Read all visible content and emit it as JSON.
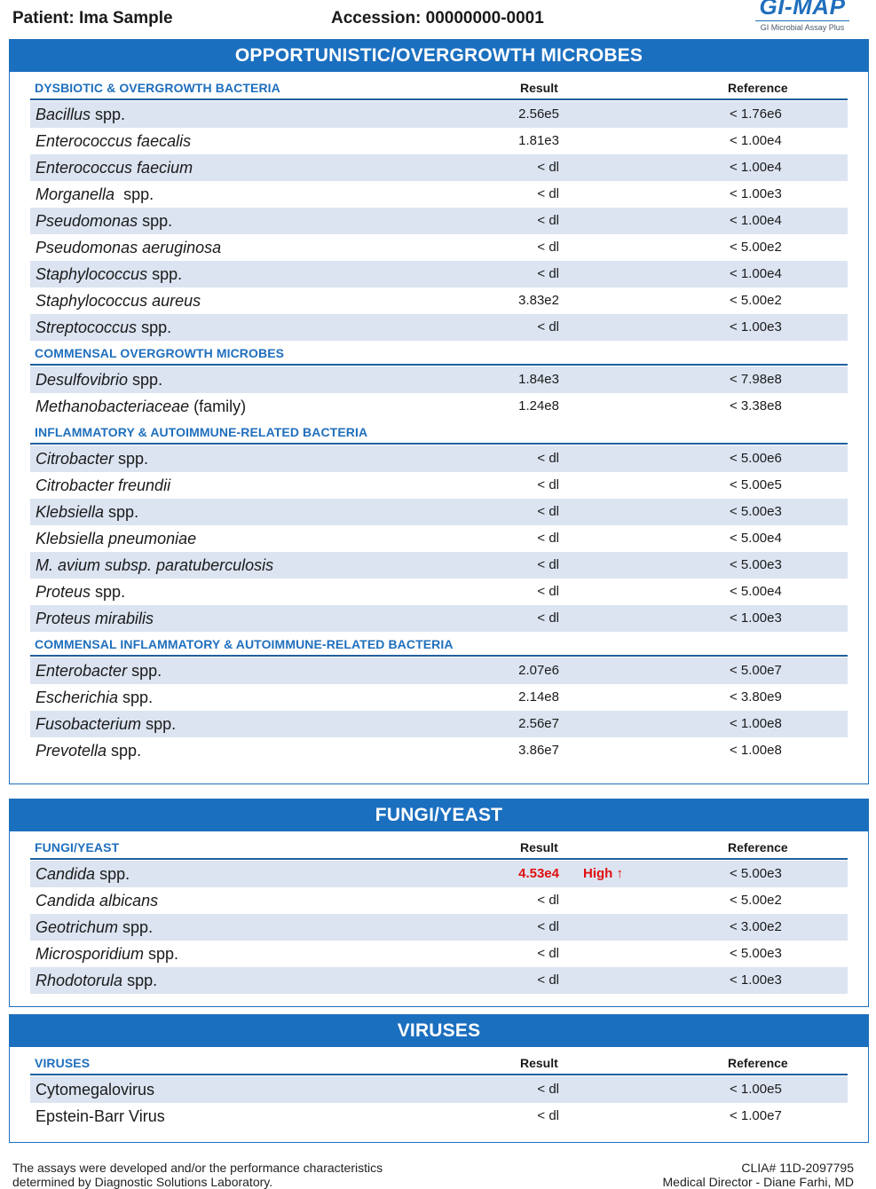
{
  "header": {
    "patient": "Patient: Ima Sample",
    "accession": "Accession: 00000000-0001",
    "logo_text": "GI-MAP",
    "logo_sub": "GI Microbial Assay Plus"
  },
  "panels": [
    {
      "title": "OPPORTUNISTIC/OVERGROWTH MICROBES",
      "sections": [
        {
          "title": "DYSBIOTIC & OVERGROWTH BACTERIA",
          "result_header": "Result",
          "reference_header": "Reference",
          "rows": [
            {
              "name_italic": "Bacillus",
              "name_plain": " spp.",
              "result": "2.56e5",
              "reference": "< 1.76e6"
            },
            {
              "name_italic": "Enterococcus faecalis",
              "name_plain": "",
              "result": "1.81e3",
              "reference": "< 1.00e4"
            },
            {
              "name_italic": "Enterococcus faecium",
              "name_plain": "",
              "result": "< dl",
              "reference": "< 1.00e4"
            },
            {
              "name_italic": "Morganella",
              "name_plain": "  spp.",
              "result": "< dl",
              "reference": "< 1.00e3"
            },
            {
              "name_italic": "Pseudomonas",
              "name_plain": " spp.",
              "result": "< dl",
              "reference": "< 1.00e4"
            },
            {
              "name_italic": "Pseudomonas aeruginosa",
              "name_plain": "",
              "result": "< dl",
              "reference": "< 5.00e2"
            },
            {
              "name_italic": "Staphylococcus",
              "name_plain": " spp.",
              "result": "< dl",
              "reference": "< 1.00e4"
            },
            {
              "name_italic": "Staphylococcus aureus",
              "name_plain": "",
              "result": "3.83e2",
              "reference": "< 5.00e2"
            },
            {
              "name_italic": "Streptococcus",
              "name_plain": " spp.",
              "result": "< dl",
              "reference": "< 1.00e3"
            }
          ]
        },
        {
          "title": "COMMENSAL OVERGROWTH MICROBES",
          "result_header": "",
          "reference_header": "",
          "rows": [
            {
              "name_italic": "Desulfovibrio",
              "name_plain": " spp.",
              "result": "1.84e3",
              "reference": "< 7.98e8"
            },
            {
              "name_italic": "Methanobacteriaceae",
              "name_plain": " (family)",
              "result": "1.24e8",
              "reference": "< 3.38e8"
            }
          ]
        },
        {
          "title": "INFLAMMATORY & AUTOIMMUNE-RELATED BACTERIA",
          "result_header": "",
          "reference_header": "",
          "rows": [
            {
              "name_italic": "Citrobacter",
              "name_plain": " spp.",
              "result": "< dl",
              "reference": "< 5.00e6"
            },
            {
              "name_italic": "Citrobacter freundii",
              "name_plain": "",
              "result": "< dl",
              "reference": "< 5.00e5"
            },
            {
              "name_italic": "Klebsiella",
              "name_plain": " spp.",
              "result": "< dl",
              "reference": "< 5.00e3"
            },
            {
              "name_italic": "Klebsiella pneumoniae",
              "name_plain": "",
              "result": "< dl",
              "reference": "< 5.00e4"
            },
            {
              "name_italic": "M. avium subsp. paratuberculosis",
              "name_plain": "",
              "result": "< dl",
              "reference": "< 5.00e3"
            },
            {
              "name_italic": "Proteus",
              "name_plain": " spp.",
              "result": "< dl",
              "reference": "< 5.00e4"
            },
            {
              "name_italic": "Proteus mirabilis",
              "name_plain": "",
              "result": "< dl",
              "reference": "< 1.00e3"
            }
          ]
        },
        {
          "title": "COMMENSAL INFLAMMATORY & AUTOIMMUNE-RELATED BACTERIA",
          "result_header": "",
          "reference_header": "",
          "rows": [
            {
              "name_italic": "Enterobacter",
              "name_plain": " spp.",
              "result": "2.07e6",
              "reference": "< 5.00e7"
            },
            {
              "name_italic": "Escherichia",
              "name_plain": " spp.",
              "result": "2.14e8",
              "reference": "< 3.80e9"
            },
            {
              "name_italic": "Fusobacterium",
              "name_plain": " spp.",
              "result": "2.56e7",
              "reference": "< 1.00e8"
            },
            {
              "name_italic": "Prevotella",
              "name_plain": " spp.",
              "result": "3.86e7",
              "reference": "< 1.00e8"
            }
          ]
        }
      ]
    },
    {
      "title": "FUNGI/YEAST",
      "sections": [
        {
          "title": "FUNGI/YEAST",
          "result_header": "Result",
          "reference_header": "Reference",
          "rows": [
            {
              "name_italic": "Candida",
              "name_plain": " spp.",
              "result": "4.53e4",
              "flag": "High ↑",
              "reference": "< 5.00e3"
            },
            {
              "name_italic": "Candida albicans",
              "name_plain": "",
              "result": "< dl",
              "reference": "< 5.00e2"
            },
            {
              "name_italic": "Geotrichum",
              "name_plain": " spp.",
              "result": "< dl",
              "reference": "< 3.00e2"
            },
            {
              "name_italic": "Microsporidium",
              "name_plain": " spp.",
              "result": "< dl",
              "reference": "< 5.00e3"
            },
            {
              "name_italic": "Rhodotorula",
              "name_plain": " spp.",
              "result": "< dl",
              "reference": "< 1.00e3"
            }
          ]
        }
      ]
    },
    {
      "title": "VIRUSES",
      "sections": [
        {
          "title": "VIRUSES",
          "result_header": "Result",
          "reference_header": "Reference",
          "rows": [
            {
              "name_italic": "",
              "name_plain": "Cytomegalovirus",
              "result": "< dl",
              "reference": "< 1.00e5"
            },
            {
              "name_italic": "",
              "name_plain": "Epstein-Barr Virus",
              "result": "< dl",
              "reference": "< 1.00e7"
            }
          ]
        }
      ]
    }
  ],
  "footer": {
    "left_line1": "The assays were developed and/or the performance characteristics",
    "left_line2": "determined by Diagnostic Solutions Laboratory.",
    "right_line1": "CLIA# 11D-2097795",
    "right_line2": "Medical Director - Diane Farhi, MD"
  },
  "colors": {
    "brand_blue": "#1b6fbf",
    "row_shade": "#dce4f1",
    "high_flag": "#e01010"
  }
}
